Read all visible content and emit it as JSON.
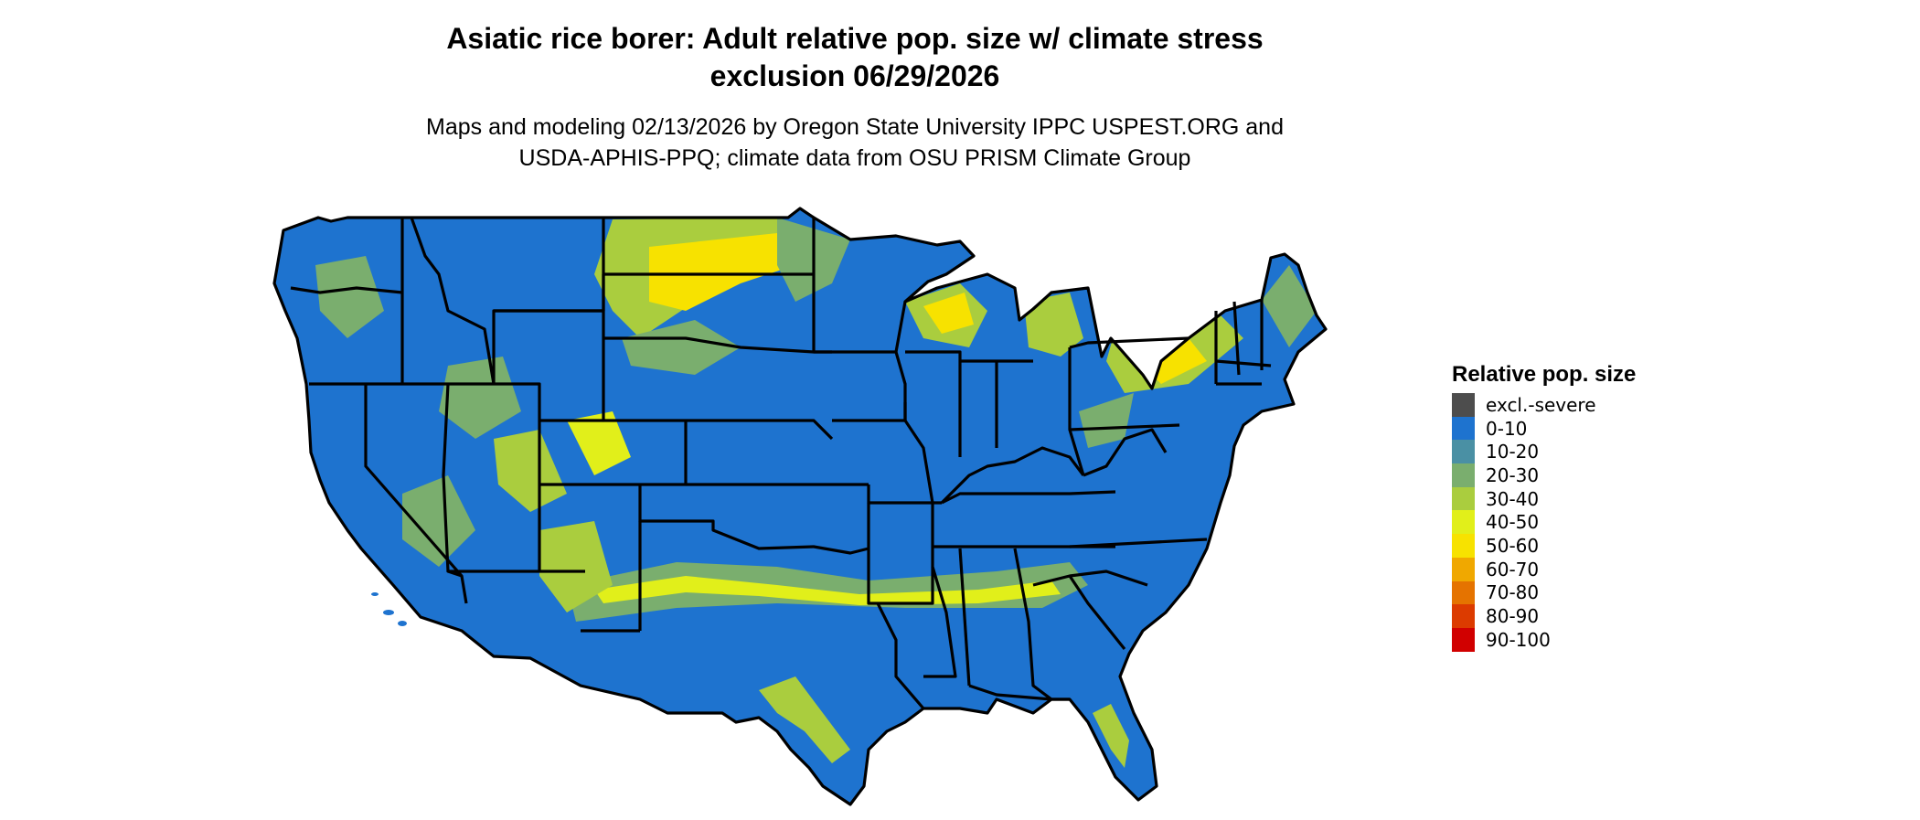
{
  "title": {
    "line1": "Asiatic rice borer: Adult relative pop. size w/ climate stress",
    "line2": "exclusion 06/29/2026"
  },
  "subtitle": {
    "line1": "Maps and modeling 02/13/2026 by Oregon State University IPPC USPEST.ORG and",
    "line2": "USDA-APHIS-PPQ; climate data from OSU PRISM Climate Group"
  },
  "legend": {
    "title": "Relative pop. size",
    "items": [
      {
        "label": "excl.-severe",
        "color": "#4d4d4d"
      },
      {
        "label": "0-10",
        "color": "#1e73cf"
      },
      {
        "label": "10-20",
        "color": "#4a90a4"
      },
      {
        "label": "20-30",
        "color": "#7aae6e"
      },
      {
        "label": "30-40",
        "color": "#aacd3e"
      },
      {
        "label": "40-50",
        "color": "#e1ef1a"
      },
      {
        "label": "50-60",
        "color": "#f7e200"
      },
      {
        "label": "60-70",
        "color": "#f0a800"
      },
      {
        "label": "70-80",
        "color": "#e57300"
      },
      {
        "label": "80-90",
        "color": "#dc3b00"
      },
      {
        "label": "90-100",
        "color": "#d10000"
      }
    ]
  },
  "map": {
    "base_color": "#1e73cf",
    "border_color": "#000000"
  }
}
